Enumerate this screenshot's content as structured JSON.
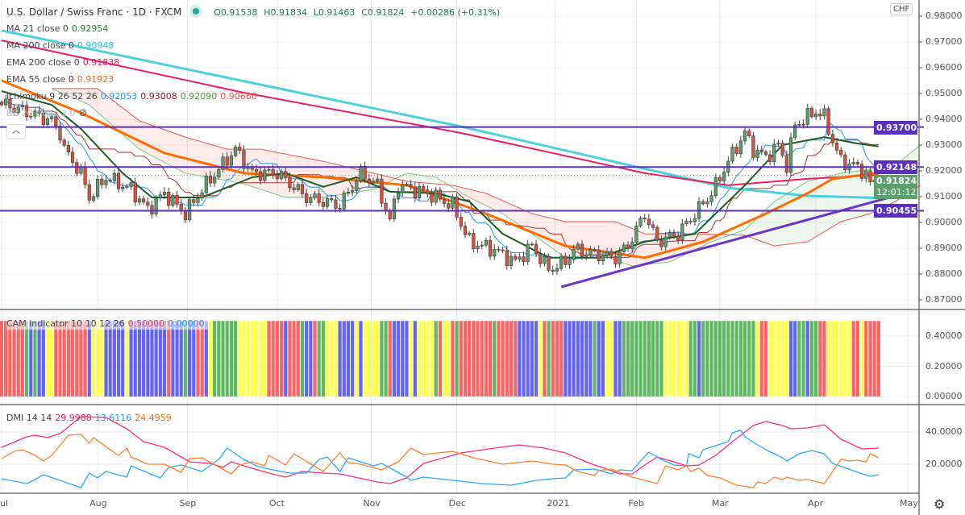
{
  "header": {
    "symbol": "U.S. Dollar / Swiss Franc · 1D · FXCM",
    "open": "O0.91538",
    "high": "H0.91834",
    "low": "L0.91463",
    "close": "C0.91824",
    "change": "+0.00286 (+0.31%)"
  },
  "indicators": {
    "ma21": {
      "label": "MA 21 close 0",
      "value": "0.92954",
      "color": "#1b5e20"
    },
    "ma200": {
      "label": "MA 200 close 0",
      "value": "0.90948",
      "color": "#4dd0e1"
    },
    "ema200": {
      "label": "EMA 200 close 0",
      "value": "0.91838",
      "color": "#e91e63"
    },
    "ema55": {
      "label": "EMA 55 close 0",
      "value": "0.91923",
      "color": "#ff6d00"
    },
    "ichimoku": {
      "label": "Ichimoku 9 26 52 26",
      "v1": "0.92053",
      "v2": "0.93008",
      "v3": "0.92090",
      "v4": "0.90666"
    },
    "bb": {
      "label": "BB 20 close 2 0"
    },
    "cam": {
      "label": "CAM indicator 10 10 12 26",
      "v1": "0.50000",
      "v2": "0.00000"
    },
    "dmi": {
      "label": "DMI 14 14",
      "v1": "29.9988",
      "v2": "13.6116",
      "v3": "24.4959"
    }
  },
  "currency_button": "CHF",
  "price_axis": {
    "ticks": [
      "0.98000",
      "0.97000",
      "0.96000",
      "0.95000",
      "0.94000",
      "0.93000",
      "0.92000",
      "0.91000",
      "0.90000",
      "0.89000",
      "0.88000",
      "0.87000"
    ],
    "tick_values": [
      0.98,
      0.97,
      0.96,
      0.95,
      0.94,
      0.93,
      0.92,
      0.91,
      0.9,
      0.89,
      0.88,
      0.87
    ],
    "last_price": "0.91824",
    "countdown": "12:01:12"
  },
  "levels": [
    {
      "label": "0.93700",
      "value": 0.937
    },
    {
      "label": "0.92148",
      "value": 0.92148
    },
    {
      "label": "0.90455",
      "value": 0.90455
    }
  ],
  "cam_axis": {
    "ticks": [
      "0.40000",
      "0.20000",
      "0.00000"
    ],
    "tick_values": [
      0.4,
      0.2,
      0
    ]
  },
  "dmi_axis": {
    "ticks": [
      "40.0000",
      "20.0000"
    ],
    "tick_values": [
      40,
      20
    ]
  },
  "time_axis": [
    {
      "label": "ul",
      "bar": 0
    },
    {
      "label": "Aug",
      "bar": 23
    },
    {
      "label": "Sep",
      "bar": 44.5
    },
    {
      "label": "Oct",
      "bar": 66
    },
    {
      "label": "Nov",
      "bar": 88.5
    },
    {
      "label": "Dec",
      "bar": 109
    },
    {
      "label": "2021",
      "bar": 132.5
    },
    {
      "label": "Feb",
      "bar": 152
    },
    {
      "label": "Mar",
      "bar": 172
    },
    {
      "label": "Apr",
      "bar": 195
    },
    {
      "label": "May",
      "bar": 217
    }
  ],
  "chart_data": {
    "type": "candlestick",
    "title": "U.S. Dollar / Swiss Franc · 1D · FXCM",
    "x_unit": "daily bar index (Jul 2020 – Apr 2021)",
    "price_range": [
      0.865,
      0.985
    ],
    "last_candle": {
      "open": 0.91538,
      "high": 0.91834,
      "low": 0.91463,
      "close": 0.91824
    },
    "close_path": [
      [
        1,
        0.9456
      ],
      [
        12,
        0.9394
      ],
      [
        14,
        0.9347
      ],
      [
        15,
        0.9284
      ],
      [
        19,
        0.9191
      ],
      [
        21,
        0.9097
      ],
      [
        25,
        0.9175
      ],
      [
        31,
        0.9128
      ],
      [
        35,
        0.905
      ],
      [
        39,
        0.9113
      ],
      [
        44,
        0.9034
      ],
      [
        48,
        0.9128
      ],
      [
        56,
        0.9284
      ],
      [
        60,
        0.9191
      ],
      [
        66,
        0.9191
      ],
      [
        73,
        0.9097
      ],
      [
        81,
        0.9066
      ],
      [
        86,
        0.9191
      ],
      [
        90,
        0.9144
      ],
      [
        93,
        0.9003
      ],
      [
        95,
        0.9144
      ],
      [
        102,
        0.9113
      ],
      [
        108,
        0.9066
      ],
      [
        112,
        0.8925
      ],
      [
        118,
        0.8894
      ],
      [
        123,
        0.8847
      ],
      [
        127,
        0.8909
      ],
      [
        131,
        0.8816
      ],
      [
        135,
        0.8847
      ],
      [
        137,
        0.8894
      ],
      [
        147,
        0.8863
      ],
      [
        150,
        0.8909
      ],
      [
        154,
        0.9034
      ],
      [
        157,
        0.8925
      ],
      [
        162,
        0.8956
      ],
      [
        166,
        0.9034
      ],
      [
        170,
        0.9113
      ],
      [
        174,
        0.9237
      ],
      [
        178,
        0.9347
      ],
      [
        180,
        0.9284
      ],
      [
        183,
        0.9253
      ],
      [
        186,
        0.93
      ],
      [
        188,
        0.9222
      ],
      [
        190,
        0.9378
      ],
      [
        193,
        0.9409
      ],
      [
        195,
        0.9431
      ],
      [
        197,
        0.9409
      ],
      [
        199,
        0.9316
      ],
      [
        201,
        0.9237
      ],
      [
        204,
        0.9222
      ],
      [
        207,
        0.9191
      ],
      [
        208,
        0.9144
      ],
      [
        210,
        0.91824
      ]
    ],
    "ma200": [
      [
        0,
        0.9744
      ],
      [
        110,
        0.9372
      ],
      [
        174,
        0.9134
      ],
      [
        193,
        0.9103
      ],
      [
        210,
        0.9095
      ]
    ],
    "ema200": [
      [
        0,
        0.9706
      ],
      [
        58,
        0.9503
      ],
      [
        110,
        0.9347
      ],
      [
        154,
        0.9191
      ],
      [
        174,
        0.9144
      ],
      [
        193,
        0.9169
      ],
      [
        210,
        0.9184
      ]
    ],
    "ema55": [
      [
        0,
        0.955
      ],
      [
        19,
        0.9425
      ],
      [
        39,
        0.9269
      ],
      [
        58,
        0.9191
      ],
      [
        77,
        0.9175
      ],
      [
        97,
        0.9144
      ],
      [
        116,
        0.9034
      ],
      [
        135,
        0.8909
      ],
      [
        154,
        0.8863
      ],
      [
        168,
        0.8925
      ],
      [
        183,
        0.9034
      ],
      [
        193,
        0.9113
      ],
      [
        199,
        0.9169
      ],
      [
        210,
        0.9192
      ]
    ],
    "ma21": [
      [
        0,
        0.9509
      ],
      [
        12,
        0.9456
      ],
      [
        19,
        0.9363
      ],
      [
        29,
        0.9191
      ],
      [
        36,
        0.9097
      ],
      [
        48,
        0.9097
      ],
      [
        60,
        0.9175
      ],
      [
        68,
        0.9191
      ],
      [
        77,
        0.9138
      ],
      [
        85,
        0.9175
      ],
      [
        93,
        0.9119
      ],
      [
        104,
        0.9113
      ],
      [
        112,
        0.9081
      ],
      [
        120,
        0.8956
      ],
      [
        131,
        0.8863
      ],
      [
        143,
        0.8863
      ],
      [
        154,
        0.8925
      ],
      [
        166,
        0.8956
      ],
      [
        178,
        0.9144
      ],
      [
        187,
        0.93
      ],
      [
        197,
        0.9331
      ],
      [
        205,
        0.9306
      ],
      [
        210,
        0.9295
      ]
    ],
    "ichimoku_span_a": [
      [
        12,
        0.9519
      ],
      [
        21,
        0.9456
      ],
      [
        33,
        0.9284
      ],
      [
        44,
        0.9191
      ],
      [
        58,
        0.915
      ],
      [
        68,
        0.9097
      ],
      [
        77,
        0.9097
      ],
      [
        89,
        0.9128
      ],
      [
        97,
        0.9191
      ],
      [
        104,
        0.9175
      ],
      [
        112,
        0.9097
      ],
      [
        120,
        0.9034
      ],
      [
        127,
        0.8956
      ],
      [
        135,
        0.8863
      ],
      [
        143,
        0.8878
      ],
      [
        151,
        0.8831
      ],
      [
        160,
        0.8847
      ],
      [
        170,
        0.8925
      ],
      [
        178,
        0.8972
      ],
      [
        185,
        0.9081
      ],
      [
        193,
        0.9159
      ],
      [
        201,
        0.9191
      ],
      [
        208,
        0.9206
      ],
      [
        214,
        0.9222
      ],
      [
        220,
        0.93
      ]
    ],
    "ichimoku_span_b": [
      [
        12,
        0.9519
      ],
      [
        23,
        0.9519
      ],
      [
        33,
        0.9394
      ],
      [
        44,
        0.9331
      ],
      [
        54,
        0.9284
      ],
      [
        62,
        0.9284
      ],
      [
        77,
        0.9237
      ],
      [
        89,
        0.9191
      ],
      [
        97,
        0.9159
      ],
      [
        108,
        0.9144
      ],
      [
        116,
        0.9113
      ],
      [
        127,
        0.9034
      ],
      [
        135,
        0.9003
      ],
      [
        147,
        0.9003
      ],
      [
        154,
        0.8956
      ],
      [
        166,
        0.8956
      ],
      [
        178,
        0.895
      ],
      [
        185,
        0.8909
      ],
      [
        193,
        0.8925
      ],
      [
        201,
        0.9003
      ],
      [
        208,
        0.9034
      ],
      [
        214,
        0.9081
      ],
      [
        220,
        0.9144
      ]
    ],
    "trendline": [
      [
        134,
        0.875
      ],
      [
        214,
        0.9103
      ]
    ],
    "cam_colors": "RRRRRRGBGBBYYRRRRRRRRBYYYBBBBBYBBBBBBBBBRBBBGBBRRBYGGGGGGYYYYYYYRRRRBRRRGBBRGGYYYBBBBYBYYYYGGRBBBBYBYYYYGRYYRGRRRRRRRRGRRRRRBBBBBYRGRRRBBBBBBBGBBYYBBGGGGGGGGGGYYYYYYGGBGGGGGGGGGGGGGYRRYYYYYBBGGBGGRRYYYYYYRRYRRRR",
    "cam_value": 0.5,
    "cam_palette": {
      "R": "#ff5252",
      "G": "#4caf50",
      "B": "#5252ff",
      "Y": "#ffff3b"
    },
    "dmi_plus": [
      [
        0,
        30.5
      ],
      [
        6,
        37
      ],
      [
        8,
        38
      ],
      [
        11,
        36.5
      ],
      [
        14,
        39
      ],
      [
        19,
        49.5
      ],
      [
        25,
        49
      ],
      [
        30,
        42
      ],
      [
        34,
        34
      ],
      [
        39,
        30.5
      ],
      [
        45,
        21.5
      ],
      [
        50,
        20.5
      ],
      [
        53,
        18
      ],
      [
        55,
        21.5
      ],
      [
        58,
        19
      ],
      [
        64,
        14.5
      ],
      [
        68,
        12
      ],
      [
        72,
        15.5
      ],
      [
        77,
        14.5
      ],
      [
        81,
        14
      ],
      [
        90,
        9
      ],
      [
        93,
        8
      ],
      [
        97,
        11.5
      ],
      [
        101,
        20.5
      ],
      [
        110,
        27
      ],
      [
        118,
        30
      ],
      [
        124,
        32
      ],
      [
        130,
        30
      ],
      [
        135,
        27
      ],
      [
        140,
        21.5
      ],
      [
        142,
        19.5
      ],
      [
        145,
        17
      ],
      [
        148,
        14
      ],
      [
        151,
        14
      ],
      [
        154,
        19.5
      ],
      [
        157,
        24.5
      ],
      [
        161,
        21.5
      ],
      [
        164,
        19
      ],
      [
        167,
        19.5
      ],
      [
        171,
        25.5
      ],
      [
        175,
        34
      ],
      [
        180,
        44
      ],
      [
        183,
        46.5
      ],
      [
        187,
        44
      ],
      [
        189,
        42
      ],
      [
        193,
        42.5
      ],
      [
        197,
        44.5
      ],
      [
        201,
        35.5
      ],
      [
        206,
        29.5
      ],
      [
        210,
        30
      ]
    ],
    "dmi_minus": [
      [
        0,
        11
      ],
      [
        6,
        8
      ],
      [
        8,
        10.5
      ],
      [
        10,
        13.5
      ],
      [
        19,
        5.5
      ],
      [
        21,
        14.5
      ],
      [
        23,
        11.5
      ],
      [
        25,
        15.5
      ],
      [
        30,
        12
      ],
      [
        31,
        19
      ],
      [
        38,
        11.5
      ],
      [
        40,
        18
      ],
      [
        43,
        19.5
      ],
      [
        48,
        15.5
      ],
      [
        52,
        23
      ],
      [
        54,
        30
      ],
      [
        58,
        23
      ],
      [
        61,
        19
      ],
      [
        64,
        17
      ],
      [
        69,
        14.5
      ],
      [
        73,
        14.5
      ],
      [
        76,
        23
      ],
      [
        78,
        24.5
      ],
      [
        81,
        15.5
      ],
      [
        83,
        24
      ],
      [
        89,
        19
      ],
      [
        91,
        20.5
      ],
      [
        97,
        12
      ],
      [
        98,
        10
      ],
      [
        101,
        12
      ],
      [
        108,
        10
      ],
      [
        115,
        8
      ],
      [
        122,
        7
      ],
      [
        128,
        10
      ],
      [
        132,
        11
      ],
      [
        135,
        11.5
      ],
      [
        137,
        16.5
      ],
      [
        142,
        17
      ],
      [
        146,
        14
      ],
      [
        148,
        16.5
      ],
      [
        151,
        16
      ],
      [
        153,
        22
      ],
      [
        155,
        27.5
      ],
      [
        158,
        23
      ],
      [
        161,
        19.5
      ],
      [
        164,
        19
      ],
      [
        164.5,
        26.5
      ],
      [
        167,
        24
      ],
      [
        168,
        29
      ],
      [
        171,
        31.5
      ],
      [
        174,
        34
      ],
      [
        175,
        39.5
      ],
      [
        177,
        41
      ],
      [
        178,
        37
      ],
      [
        181,
        32
      ],
      [
        183,
        29
      ],
      [
        187,
        24
      ],
      [
        188,
        22
      ],
      [
        191,
        26.5
      ],
      [
        194,
        28.5
      ],
      [
        197,
        26.5
      ],
      [
        199,
        20.5
      ],
      [
        205,
        15
      ],
      [
        208,
        12.5
      ],
      [
        210,
        13.5
      ]
    ],
    "adx": [
      [
        0,
        23.5
      ],
      [
        3,
        28
      ],
      [
        5,
        29
      ],
      [
        8,
        25.5
      ],
      [
        10,
        22
      ],
      [
        12,
        25.5
      ],
      [
        16,
        38
      ],
      [
        19,
        38.5
      ],
      [
        21,
        33
      ],
      [
        22,
        36.5
      ],
      [
        26,
        29
      ],
      [
        28,
        25.5
      ],
      [
        30,
        30
      ],
      [
        31,
        24.5
      ],
      [
        35,
        20
      ],
      [
        39,
        20
      ],
      [
        43,
        15
      ],
      [
        45,
        23.5
      ],
      [
        48,
        24
      ],
      [
        55,
        14
      ],
      [
        57,
        19.5
      ],
      [
        60,
        21.5
      ],
      [
        63,
        19
      ],
      [
        64,
        25.5
      ],
      [
        68,
        19.5
      ],
      [
        70,
        26.5
      ],
      [
        77,
        15.5
      ],
      [
        81,
        27
      ],
      [
        83,
        21
      ],
      [
        86,
        20
      ],
      [
        91,
        16.5
      ],
      [
        95,
        21.5
      ],
      [
        98,
        30
      ],
      [
        101,
        26
      ],
      [
        108,
        28
      ],
      [
        113,
        24
      ],
      [
        120,
        20
      ],
      [
        127,
        22
      ],
      [
        132,
        20
      ],
      [
        135,
        19.5
      ],
      [
        138,
        15.5
      ],
      [
        142,
        13
      ],
      [
        143,
        16
      ],
      [
        146,
        17
      ],
      [
        151,
        12
      ],
      [
        157,
        8
      ],
      [
        159,
        19
      ],
      [
        162,
        16.5
      ],
      [
        164,
        19
      ],
      [
        165,
        15.5
      ],
      [
        167,
        17.5
      ],
      [
        169,
        13
      ],
      [
        172,
        11.5
      ],
      [
        176,
        7
      ],
      [
        180,
        5.5
      ],
      [
        181,
        9
      ],
      [
        183,
        8
      ],
      [
        185,
        12
      ],
      [
        187,
        10.5
      ],
      [
        188,
        12
      ],
      [
        191,
        10
      ],
      [
        193,
        10.5
      ],
      [
        197,
        8
      ],
      [
        201,
        23
      ],
      [
        203,
        22
      ],
      [
        205,
        22.5
      ],
      [
        207,
        21.5
      ],
      [
        208,
        26.5
      ],
      [
        210,
        24
      ]
    ],
    "dmi_range": [
      0,
      58
    ]
  }
}
